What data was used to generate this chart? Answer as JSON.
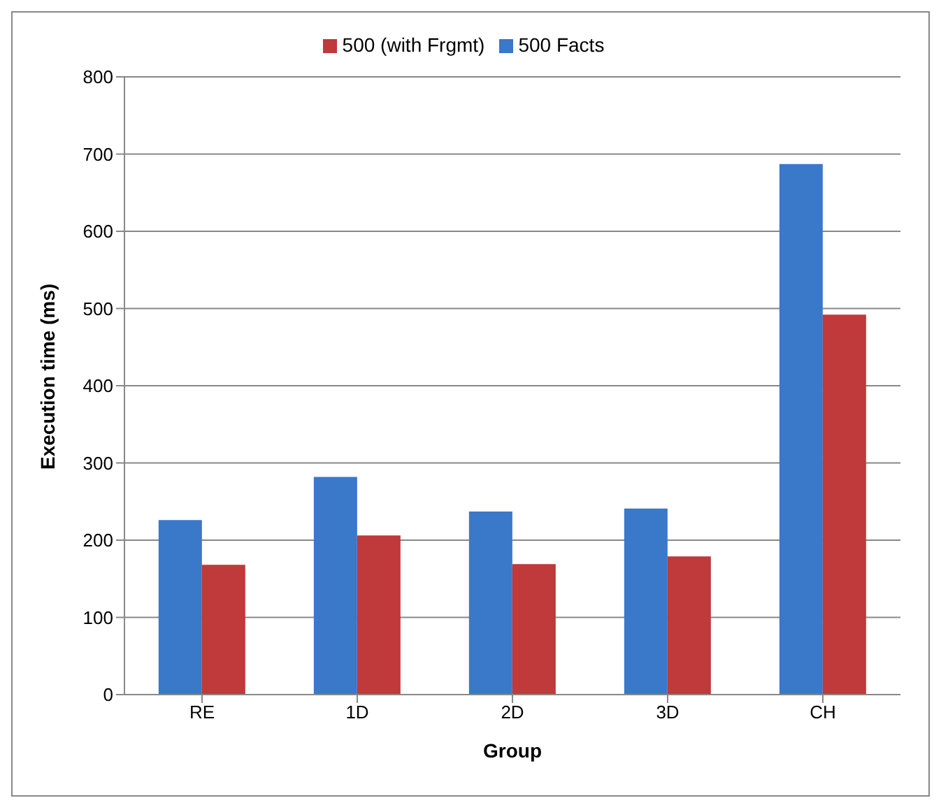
{
  "chart_data": {
    "type": "bar",
    "xlabel": "Group",
    "ylabel": "Execution time (ms)",
    "categories": [
      "RE",
      "1D",
      "2D",
      "3D",
      "CH"
    ],
    "series": [
      {
        "name": "500 Facts",
        "color": "#3a78c9",
        "values": [
          226,
          282,
          237,
          241,
          687
        ]
      },
      {
        "name": "500 (with Frgmt)",
        "color": "#c0393b",
        "values": [
          168,
          206,
          169,
          179,
          492
        ]
      }
    ],
    "ylim": [
      0,
      800
    ],
    "yticks": [
      0,
      100,
      200,
      300,
      400,
      500,
      600,
      700,
      800
    ],
    "grid": "y",
    "legend": "top"
  }
}
